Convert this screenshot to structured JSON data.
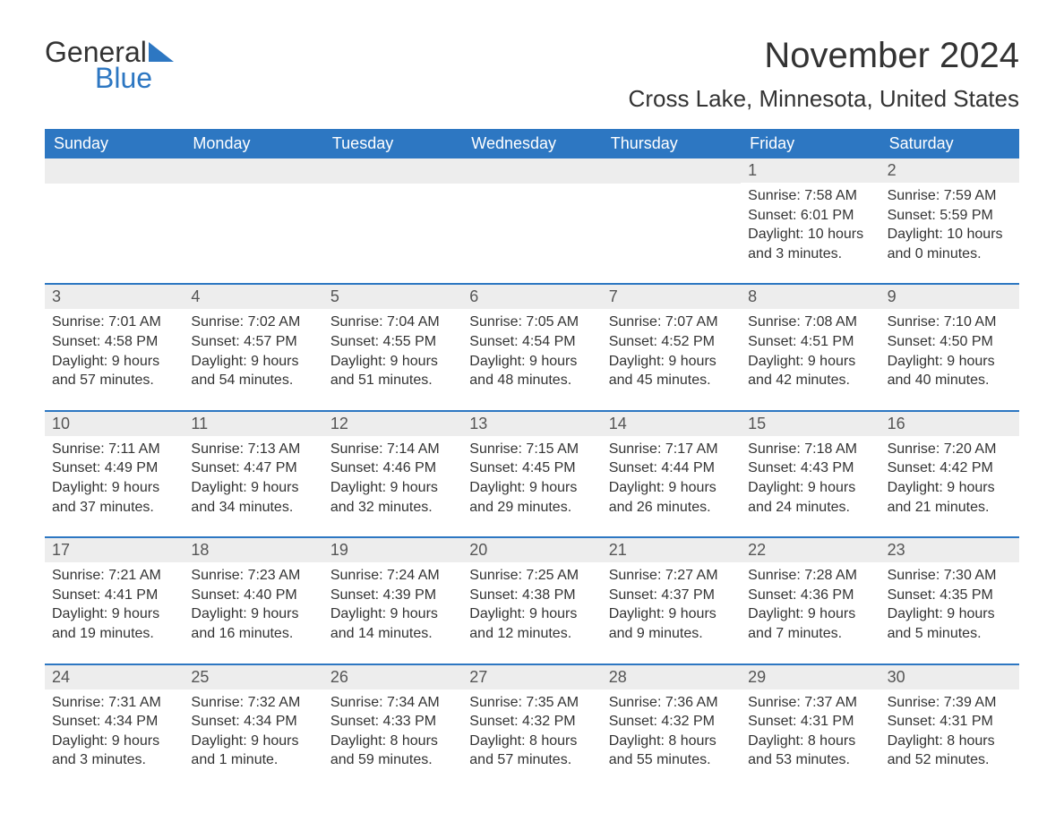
{
  "logo": {
    "word1": "General",
    "word2": "Blue"
  },
  "title": "November 2024",
  "location": "Cross Lake, Minnesota, United States",
  "colors": {
    "header_bg": "#2d77c2",
    "header_text": "#ffffff",
    "daynum_bg": "#ededed",
    "text": "#333333",
    "page_bg": "#ffffff",
    "row_border": "#2d77c2"
  },
  "weekdays": [
    "Sunday",
    "Monday",
    "Tuesday",
    "Wednesday",
    "Thursday",
    "Friday",
    "Saturday"
  ],
  "weeks": [
    [
      null,
      null,
      null,
      null,
      null,
      {
        "n": "1",
        "sunrise": "Sunrise: 7:58 AM",
        "sunset": "Sunset: 6:01 PM",
        "daylight1": "Daylight: 10 hours",
        "daylight2": "and 3 minutes."
      },
      {
        "n": "2",
        "sunrise": "Sunrise: 7:59 AM",
        "sunset": "Sunset: 5:59 PM",
        "daylight1": "Daylight: 10 hours",
        "daylight2": "and 0 minutes."
      }
    ],
    [
      {
        "n": "3",
        "sunrise": "Sunrise: 7:01 AM",
        "sunset": "Sunset: 4:58 PM",
        "daylight1": "Daylight: 9 hours",
        "daylight2": "and 57 minutes."
      },
      {
        "n": "4",
        "sunrise": "Sunrise: 7:02 AM",
        "sunset": "Sunset: 4:57 PM",
        "daylight1": "Daylight: 9 hours",
        "daylight2": "and 54 minutes."
      },
      {
        "n": "5",
        "sunrise": "Sunrise: 7:04 AM",
        "sunset": "Sunset: 4:55 PM",
        "daylight1": "Daylight: 9 hours",
        "daylight2": "and 51 minutes."
      },
      {
        "n": "6",
        "sunrise": "Sunrise: 7:05 AM",
        "sunset": "Sunset: 4:54 PM",
        "daylight1": "Daylight: 9 hours",
        "daylight2": "and 48 minutes."
      },
      {
        "n": "7",
        "sunrise": "Sunrise: 7:07 AM",
        "sunset": "Sunset: 4:52 PM",
        "daylight1": "Daylight: 9 hours",
        "daylight2": "and 45 minutes."
      },
      {
        "n": "8",
        "sunrise": "Sunrise: 7:08 AM",
        "sunset": "Sunset: 4:51 PM",
        "daylight1": "Daylight: 9 hours",
        "daylight2": "and 42 minutes."
      },
      {
        "n": "9",
        "sunrise": "Sunrise: 7:10 AM",
        "sunset": "Sunset: 4:50 PM",
        "daylight1": "Daylight: 9 hours",
        "daylight2": "and 40 minutes."
      }
    ],
    [
      {
        "n": "10",
        "sunrise": "Sunrise: 7:11 AM",
        "sunset": "Sunset: 4:49 PM",
        "daylight1": "Daylight: 9 hours",
        "daylight2": "and 37 minutes."
      },
      {
        "n": "11",
        "sunrise": "Sunrise: 7:13 AM",
        "sunset": "Sunset: 4:47 PM",
        "daylight1": "Daylight: 9 hours",
        "daylight2": "and 34 minutes."
      },
      {
        "n": "12",
        "sunrise": "Sunrise: 7:14 AM",
        "sunset": "Sunset: 4:46 PM",
        "daylight1": "Daylight: 9 hours",
        "daylight2": "and 32 minutes."
      },
      {
        "n": "13",
        "sunrise": "Sunrise: 7:15 AM",
        "sunset": "Sunset: 4:45 PM",
        "daylight1": "Daylight: 9 hours",
        "daylight2": "and 29 minutes."
      },
      {
        "n": "14",
        "sunrise": "Sunrise: 7:17 AM",
        "sunset": "Sunset: 4:44 PM",
        "daylight1": "Daylight: 9 hours",
        "daylight2": "and 26 minutes."
      },
      {
        "n": "15",
        "sunrise": "Sunrise: 7:18 AM",
        "sunset": "Sunset: 4:43 PM",
        "daylight1": "Daylight: 9 hours",
        "daylight2": "and 24 minutes."
      },
      {
        "n": "16",
        "sunrise": "Sunrise: 7:20 AM",
        "sunset": "Sunset: 4:42 PM",
        "daylight1": "Daylight: 9 hours",
        "daylight2": "and 21 minutes."
      }
    ],
    [
      {
        "n": "17",
        "sunrise": "Sunrise: 7:21 AM",
        "sunset": "Sunset: 4:41 PM",
        "daylight1": "Daylight: 9 hours",
        "daylight2": "and 19 minutes."
      },
      {
        "n": "18",
        "sunrise": "Sunrise: 7:23 AM",
        "sunset": "Sunset: 4:40 PM",
        "daylight1": "Daylight: 9 hours",
        "daylight2": "and 16 minutes."
      },
      {
        "n": "19",
        "sunrise": "Sunrise: 7:24 AM",
        "sunset": "Sunset: 4:39 PM",
        "daylight1": "Daylight: 9 hours",
        "daylight2": "and 14 minutes."
      },
      {
        "n": "20",
        "sunrise": "Sunrise: 7:25 AM",
        "sunset": "Sunset: 4:38 PM",
        "daylight1": "Daylight: 9 hours",
        "daylight2": "and 12 minutes."
      },
      {
        "n": "21",
        "sunrise": "Sunrise: 7:27 AM",
        "sunset": "Sunset: 4:37 PM",
        "daylight1": "Daylight: 9 hours",
        "daylight2": "and 9 minutes."
      },
      {
        "n": "22",
        "sunrise": "Sunrise: 7:28 AM",
        "sunset": "Sunset: 4:36 PM",
        "daylight1": "Daylight: 9 hours",
        "daylight2": "and 7 minutes."
      },
      {
        "n": "23",
        "sunrise": "Sunrise: 7:30 AM",
        "sunset": "Sunset: 4:35 PM",
        "daylight1": "Daylight: 9 hours",
        "daylight2": "and 5 minutes."
      }
    ],
    [
      {
        "n": "24",
        "sunrise": "Sunrise: 7:31 AM",
        "sunset": "Sunset: 4:34 PM",
        "daylight1": "Daylight: 9 hours",
        "daylight2": "and 3 minutes."
      },
      {
        "n": "25",
        "sunrise": "Sunrise: 7:32 AM",
        "sunset": "Sunset: 4:34 PM",
        "daylight1": "Daylight: 9 hours",
        "daylight2": "and 1 minute."
      },
      {
        "n": "26",
        "sunrise": "Sunrise: 7:34 AM",
        "sunset": "Sunset: 4:33 PM",
        "daylight1": "Daylight: 8 hours",
        "daylight2": "and 59 minutes."
      },
      {
        "n": "27",
        "sunrise": "Sunrise: 7:35 AM",
        "sunset": "Sunset: 4:32 PM",
        "daylight1": "Daylight: 8 hours",
        "daylight2": "and 57 minutes."
      },
      {
        "n": "28",
        "sunrise": "Sunrise: 7:36 AM",
        "sunset": "Sunset: 4:32 PM",
        "daylight1": "Daylight: 8 hours",
        "daylight2": "and 55 minutes."
      },
      {
        "n": "29",
        "sunrise": "Sunrise: 7:37 AM",
        "sunset": "Sunset: 4:31 PM",
        "daylight1": "Daylight: 8 hours",
        "daylight2": "and 53 minutes."
      },
      {
        "n": "30",
        "sunrise": "Sunrise: 7:39 AM",
        "sunset": "Sunset: 4:31 PM",
        "daylight1": "Daylight: 8 hours",
        "daylight2": "and 52 minutes."
      }
    ]
  ]
}
